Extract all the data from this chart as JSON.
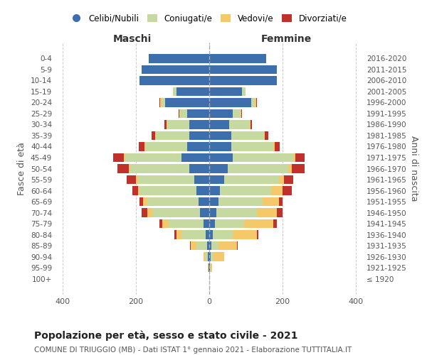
{
  "age_groups": [
    "100+",
    "95-99",
    "90-94",
    "85-89",
    "80-84",
    "75-79",
    "70-74",
    "65-69",
    "60-64",
    "55-59",
    "50-54",
    "45-49",
    "40-44",
    "35-39",
    "30-34",
    "25-29",
    "20-24",
    "15-19",
    "10-14",
    "5-9",
    "0-4"
  ],
  "birth_years": [
    "≤ 1920",
    "1921-1925",
    "1926-1930",
    "1931-1935",
    "1936-1940",
    "1941-1945",
    "1946-1950",
    "1951-1955",
    "1956-1960",
    "1961-1965",
    "1966-1970",
    "1971-1975",
    "1976-1980",
    "1981-1985",
    "1986-1990",
    "1991-1995",
    "1996-2000",
    "2001-2005",
    "2006-2010",
    "2011-2015",
    "2016-2020"
  ],
  "maschi": {
    "celibi": [
      0,
      1,
      3,
      5,
      10,
      15,
      25,
      30,
      35,
      40,
      55,
      75,
      60,
      55,
      55,
      60,
      120,
      90,
      190,
      185,
      165
    ],
    "coniugati": [
      0,
      1,
      8,
      30,
      65,
      95,
      130,
      140,
      155,
      155,
      160,
      155,
      115,
      90,
      60,
      20,
      10,
      10,
      0,
      0,
      0
    ],
    "vedovi": [
      0,
      2,
      5,
      15,
      15,
      18,
      15,
      10,
      5,
      5,
      5,
      3,
      2,
      2,
      2,
      2,
      5,
      0,
      0,
      0,
      0
    ],
    "divorziati": [
      0,
      0,
      0,
      2,
      5,
      8,
      15,
      10,
      15,
      25,
      30,
      30,
      15,
      10,
      5,
      2,
      2,
      0,
      0,
      0,
      0
    ]
  },
  "femmine": {
    "nubili": [
      0,
      1,
      3,
      5,
      10,
      15,
      20,
      25,
      30,
      40,
      50,
      65,
      60,
      60,
      55,
      65,
      115,
      90,
      185,
      185,
      155
    ],
    "coniugate": [
      0,
      2,
      8,
      20,
      55,
      80,
      110,
      120,
      140,
      150,
      165,
      165,
      115,
      90,
      55,
      20,
      10,
      10,
      0,
      0,
      0
    ],
    "vedove": [
      0,
      5,
      30,
      50,
      65,
      80,
      55,
      45,
      30,
      15,
      10,
      5,
      3,
      2,
      2,
      2,
      3,
      0,
      0,
      0,
      0
    ],
    "divorziate": [
      0,
      0,
      0,
      2,
      5,
      10,
      15,
      10,
      25,
      25,
      35,
      25,
      15,
      10,
      5,
      2,
      2,
      0,
      0,
      0,
      0
    ]
  },
  "colors": {
    "celibi_nubili": "#3d6fad",
    "coniugati": "#c5d9a0",
    "vedovi": "#f5c96a",
    "divorziati": "#c0312b"
  },
  "xlim": 420,
  "title": "Popolazione per età, sesso e stato civile - 2021",
  "subtitle": "COMUNE DI TRIUGGIO (MB) - Dati ISTAT 1° gennaio 2021 - Elaborazione TUTTITALIA.IT",
  "xlabel_left": "Maschi",
  "xlabel_right": "Femmine",
  "ylabel_left": "Fasce di età",
  "ylabel_right": "Anni di nascita",
  "legend_labels": [
    "Celibi/Nubili",
    "Coniugati/e",
    "Vedovi/e",
    "Divorziati/e"
  ]
}
